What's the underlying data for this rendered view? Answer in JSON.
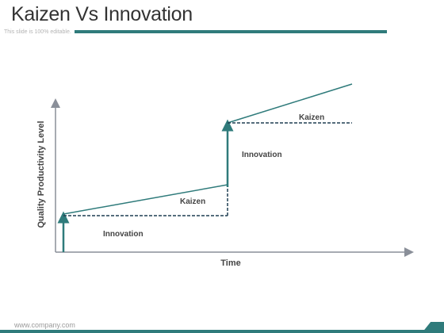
{
  "header": {
    "title": "Kaizen Vs Innovation",
    "subtitle": "This slide is 100% editable."
  },
  "diagram": {
    "x_axis_label": "Time",
    "y_axis_label": "Quality Productivity Level",
    "labels": {
      "innovation_lower": "Innovation",
      "kaizen_lower": "Kaizen",
      "innovation_upper": "Innovation",
      "kaizen_upper": "Kaizen"
    }
  },
  "footer": {
    "url": "www.company.com"
  },
  "colors": {
    "accent": "#2f7b7b",
    "axis": "#8a8f99",
    "dashed": "#1f3f52"
  }
}
